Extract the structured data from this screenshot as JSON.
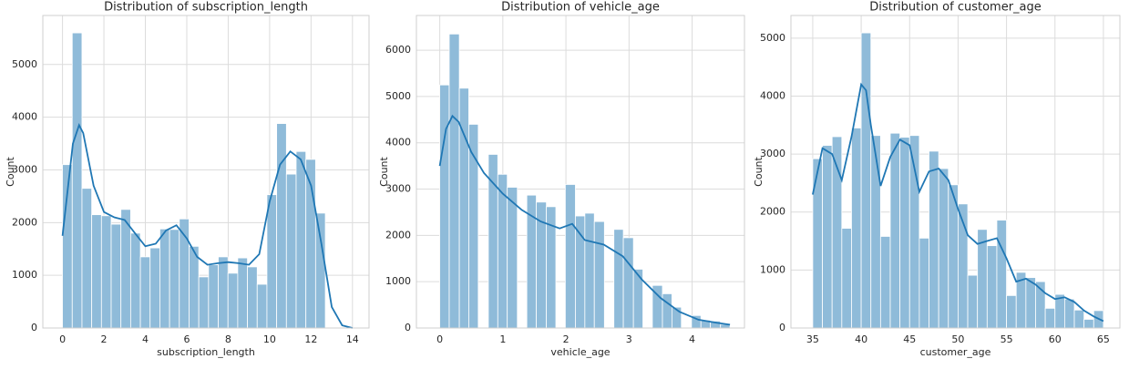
{
  "chart_data": [
    {
      "type": "histogram",
      "title": "Distribution of subscription_length",
      "xlabel": "subscription_length",
      "ylabel": "Count",
      "bins": [
        0,
        0.47,
        0.94,
        1.41,
        1.88,
        2.35,
        2.82,
        3.29,
        3.76,
        4.23,
        4.7,
        5.17,
        5.64,
        6.11,
        6.58,
        7.05,
        7.52,
        7.99,
        8.46,
        8.93,
        9.4,
        9.87,
        10.34,
        10.81,
        11.28,
        11.75,
        12.22,
        12.69
      ],
      "values": [
        3100,
        5600,
        2650,
        2150,
        2130,
        1970,
        2250,
        1800,
        1350,
        1520,
        1880,
        1870,
        2070,
        1550,
        970,
        1200,
        1350,
        1040,
        1330,
        1160,
        830,
        2530,
        3880,
        2920,
        3350,
        3200,
        2180
      ],
      "color": "#8fbbd9",
      "line": {
        "x": [
          0,
          0.5,
          0.8,
          1,
          1.5,
          2,
          2.5,
          3,
          3.5,
          4,
          4.5,
          5,
          5.5,
          6,
          6.5,
          7,
          7.5,
          8,
          8.5,
          9,
          9.5,
          10,
          10.5,
          11,
          11.5,
          12,
          12.5,
          13,
          13.5,
          14
        ],
        "y": [
          1750,
          3500,
          3850,
          3700,
          2700,
          2200,
          2100,
          2050,
          1800,
          1550,
          1600,
          1850,
          1950,
          1700,
          1350,
          1200,
          1230,
          1250,
          1230,
          1200,
          1400,
          2400,
          3100,
          3350,
          3200,
          2700,
          1600,
          400,
          50,
          0
        ],
        "color": "#1f77b4"
      },
      "xlim": [
        -0.95,
        14.8
      ],
      "ylim": [
        0,
        5930
      ],
      "xticks": [
        0,
        2,
        4,
        6,
        8,
        10,
        12,
        14
      ],
      "yticks": [
        0,
        1000,
        2000,
        3000,
        4000,
        5000
      ],
      "grid": true
    },
    {
      "type": "histogram",
      "title": "Distribution of vehicle_age",
      "xlabel": "vehicle_age",
      "ylabel": "Count",
      "bins": [
        0,
        0.15,
        0.31,
        0.46,
        0.61,
        0.77,
        0.92,
        1.07,
        1.23,
        1.38,
        1.53,
        1.69,
        1.84,
        1.99,
        2.15,
        2.3,
        2.45,
        2.61,
        2.76,
        2.91,
        3.07,
        3.22,
        3.37,
        3.53,
        3.68,
        3.83,
        3.99,
        4.14,
        4.29,
        4.45,
        4.6
      ],
      "values": [
        5250,
        6350,
        5180,
        4400,
        0,
        3750,
        3320,
        3040,
        0,
        2870,
        2720,
        2620,
        0,
        3100,
        2420,
        2480,
        2300,
        0,
        2130,
        1950,
        1270,
        0,
        920,
        740,
        450,
        0,
        270,
        170,
        150,
        80
      ],
      "color": "#8fbbd9",
      "line": {
        "x": [
          0,
          0.1,
          0.2,
          0.3,
          0.5,
          0.7,
          1,
          1.3,
          1.6,
          1.9,
          2.1,
          2.3,
          2.6,
          2.9,
          3.2,
          3.5,
          3.8,
          4.1,
          4.4,
          4.6
        ],
        "y": [
          3500,
          4300,
          4580,
          4450,
          3800,
          3350,
          2900,
          2550,
          2300,
          2150,
          2250,
          1900,
          1800,
          1550,
          1050,
          650,
          350,
          180,
          110,
          70
        ],
        "color": "#1f77b4"
      },
      "xlim": [
        -0.37,
        4.83
      ],
      "ylim": [
        0,
        6750
      ],
      "xticks": [
        0,
        1,
        2,
        3,
        4
      ],
      "yticks": [
        0,
        1000,
        2000,
        3000,
        4000,
        5000,
        6000
      ],
      "grid": true
    },
    {
      "type": "histogram",
      "title": "Distribution of customer_age",
      "xlabel": "customer_age",
      "ylabel": "Count",
      "bins": [
        35,
        36,
        37,
        38,
        39,
        40,
        41,
        42,
        43,
        44,
        45,
        46,
        47,
        48,
        49,
        50,
        51,
        52,
        53,
        54,
        55,
        56,
        57,
        58,
        59,
        60,
        61,
        62,
        63,
        64,
        65
      ],
      "values": [
        2920,
        3150,
        3300,
        1720,
        3450,
        5090,
        3320,
        1580,
        3360,
        3290,
        3320,
        1550,
        3050,
        2750,
        2470,
        2140,
        910,
        1700,
        1420,
        1860,
        560,
        960,
        870,
        800,
        340,
        580,
        500,
        310,
        150,
        300
      ],
      "color": "#8fbbd9",
      "line": {
        "x": [
          35,
          36,
          37,
          38,
          39,
          40,
          40.5,
          41,
          42,
          43,
          44,
          45,
          46,
          47,
          48,
          49,
          50,
          51,
          52,
          53,
          54,
          55,
          56,
          57,
          58,
          59,
          60,
          61,
          62,
          63,
          64,
          65
        ],
        "y": [
          2300,
          3100,
          3000,
          2550,
          3300,
          4200,
          4100,
          3500,
          2450,
          2950,
          3250,
          3150,
          2350,
          2700,
          2750,
          2550,
          2050,
          1600,
          1450,
          1500,
          1550,
          1200,
          800,
          850,
          750,
          600,
          500,
          530,
          450,
          300,
          200,
          120
        ],
        "color": "#1f77b4"
      },
      "xlim": [
        32.75,
        66.7
      ],
      "ylim": [
        0,
        5390
      ],
      "xticks": [
        35,
        40,
        45,
        50,
        55,
        60,
        65
      ],
      "yticks": [
        0,
        1000,
        2000,
        3000,
        4000,
        5000
      ],
      "grid": true
    }
  ]
}
